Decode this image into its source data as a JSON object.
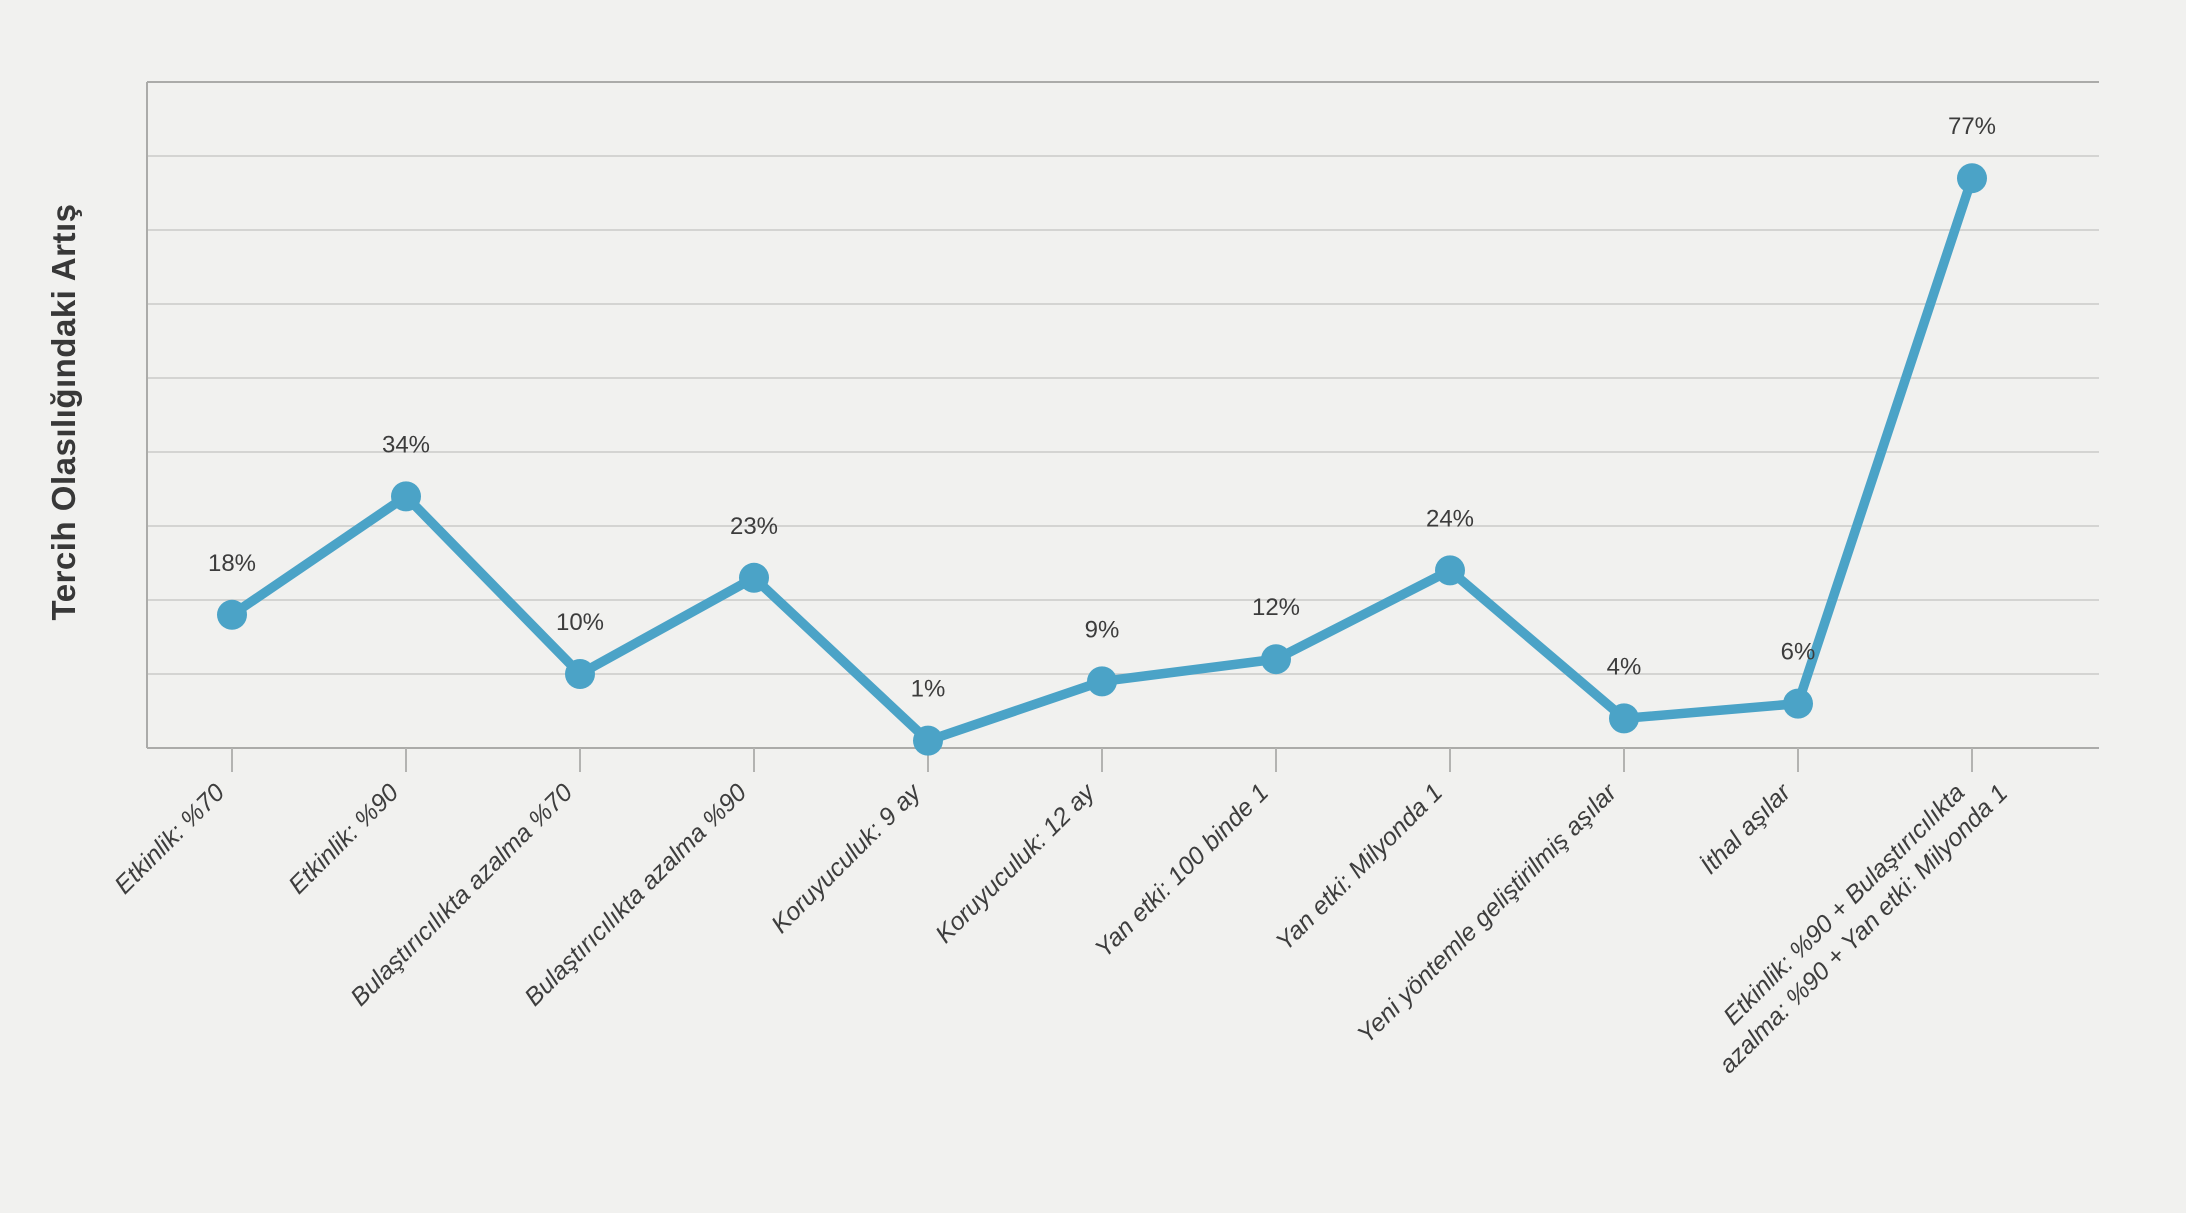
{
  "chart_data": {
    "type": "line",
    "title": "",
    "xlabel": "",
    "ylabel": "Tercih Olasılığındaki Artış",
    "ylim": [
      0,
      90
    ],
    "grid": true,
    "gridline_step": 10,
    "legend": false,
    "categories": [
      "Etkinlik: %70",
      "Etkinlik: %90",
      "Bulaştırıcılıkta azalma %70",
      "Bulaştırıcılıkta azalma %90",
      "Koruyuculuk: 9 ay",
      "Koruyuculuk: 12 ay",
      "Yan etki: 100 binde 1",
      "Yan etki: Milyonda 1",
      "Yeni yöntemle geliştirilmiş aşılar",
      "İthal aşılar",
      "Etkinlik: %90 + Bulaştırıcılıkta\nazalma: %90 + Yan etki: Milyonda 1"
    ],
    "values": [
      18,
      34,
      10,
      23,
      1,
      9,
      12,
      24,
      4,
      6,
      77
    ],
    "point_labels": [
      "18%",
      "34%",
      "10%",
      "23%",
      "1%",
      "9%",
      "12%",
      "24%",
      "4%",
      "6%",
      "77%"
    ],
    "colors": {
      "line": "#4BA3C7",
      "marker": "#4BA3C7",
      "background": "#F1F1EF",
      "gridline": "#CBCBC9",
      "axis": "#ABABA9",
      "tick": "#B3B3B1",
      "data_label": "#3C3C3C",
      "category_label": "#3D3D3D",
      "axis_title": "#383838"
    }
  }
}
